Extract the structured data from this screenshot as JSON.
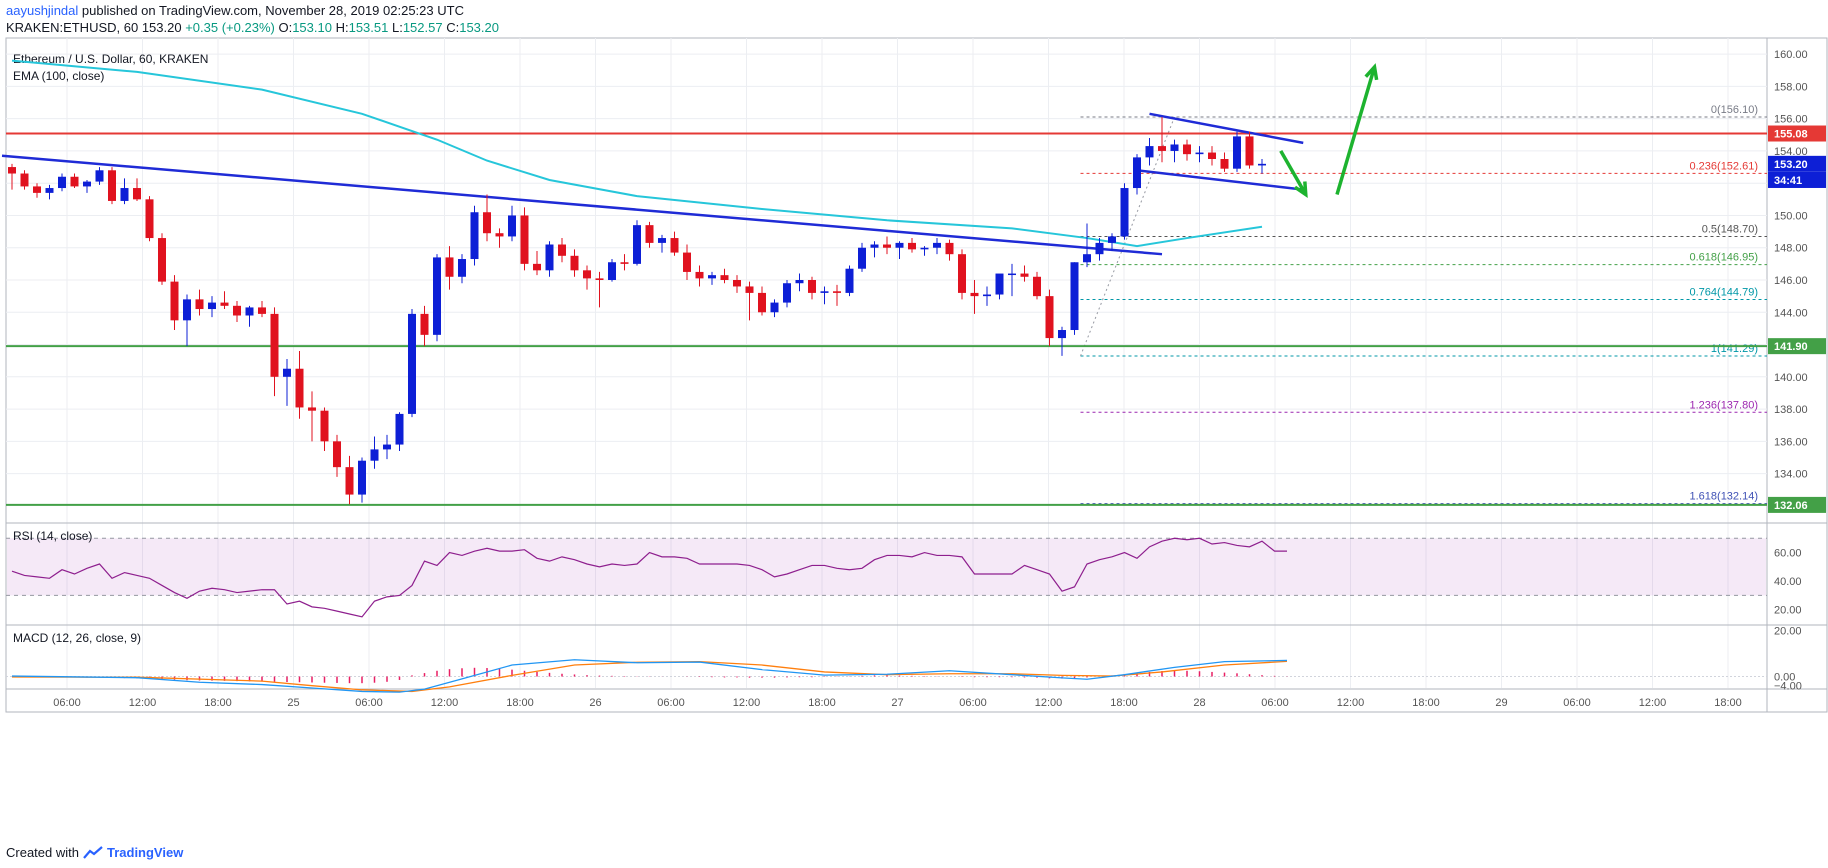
{
  "header": {
    "author": "aayushjindal",
    "published_text": "published on TradingView.com, November 28, 2019 02:25:23 UTC",
    "symbol": "KRAKEN:ETHUSD, 60",
    "price": "153.20",
    "change": "+0.35 (+0.23%)",
    "open_label": "O:",
    "open": "153.10",
    "high_label": "H:",
    "high": "153.51",
    "low_label": "L:",
    "low": "152.57",
    "close_label": "C:",
    "close": "153.20"
  },
  "footer": {
    "created_with": "Created with",
    "brand": "TradingView"
  },
  "colors": {
    "up": "#0d1fd6",
    "down": "#e0121f",
    "ema": "#26c6da",
    "trend": "#1f2bd6",
    "resistance": "#e53935",
    "support": "#43a047",
    "arrow": "#1db32f",
    "rsi": "#8e1f8e",
    "macd": "#2196f3",
    "signal": "#ff7f0e",
    "hist": "#e91e63"
  },
  "chart_data": [
    {
      "type": "candlestick",
      "title": "Ethereum / U.S. Dollar, 60, KRAKEN",
      "indicator_label": "EMA (100, close)",
      "ylim": [
        131,
        161
      ],
      "y_ticks": [
        "160.00",
        "158.00",
        "156.00",
        "154.00",
        "152.00",
        "150.00",
        "148.00",
        "146.00",
        "144.00",
        "142.00",
        "140.00",
        "138.00",
        "136.00",
        "134.00"
      ],
      "x_ticks": [
        "06:00",
        "12:00",
        "18:00",
        "25",
        "06:00",
        "12:00",
        "18:00",
        "26",
        "06:00",
        "12:00",
        "18:00",
        "27",
        "06:00",
        "12:00",
        "18:00",
        "28",
        "06:00",
        "12:00",
        "18:00",
        "29",
        "06:00",
        "12:00",
        "18:00"
      ],
      "price_tags": [
        {
          "value": 155.08,
          "label": "155.08",
          "color": "#e53935"
        },
        {
          "value": 153.2,
          "label": "153.20",
          "color": "#0d1fd6"
        },
        {
          "value": 152.2,
          "label": "34:41",
          "color": "#0d1fd6"
        },
        {
          "value": 141.9,
          "label": "141.90",
          "color": "#43a047"
        },
        {
          "value": 132.06,
          "label": "132.06",
          "color": "#43a047"
        }
      ],
      "horizontal_lines": [
        {
          "name": "resistance",
          "value": 155.08
        },
        {
          "name": "support-upper",
          "value": 141.9
        },
        {
          "name": "support-lower",
          "value": 132.06
        }
      ],
      "fibonacci": [
        {
          "level": "0",
          "label": "0(156.10)",
          "value": 156.1,
          "color": "#787b86"
        },
        {
          "level": "0.236",
          "label": "0.236(152.61)",
          "value": 152.61,
          "color": "#e53935"
        },
        {
          "level": "0.5",
          "label": "0.5(148.70)",
          "value": 148.7,
          "color": "#555555"
        },
        {
          "level": "0.618",
          "label": "0.618(146.95)",
          "value": 146.95,
          "color": "#43a047"
        },
        {
          "level": "0.764",
          "label": "0.764(144.79)",
          "value": 144.79,
          "color": "#0097a7"
        },
        {
          "level": "1",
          "label": "1(141.29)",
          "value": 141.29,
          "color": "#0097a7"
        },
        {
          "level": "1.236",
          "label": "1.236(137.80)",
          "value": 137.8,
          "color": "#9c27b0"
        },
        {
          "level": "1.618",
          "label": "1.618(132.14)",
          "value": 132.14,
          "color": "#3f51b5"
        }
      ],
      "candles": [
        [
          153.0,
          153.2,
          151.6,
          152.6
        ],
        [
          152.6,
          152.8,
          151.6,
          151.8
        ],
        [
          151.8,
          152.0,
          151.1,
          151.4
        ],
        [
          151.4,
          151.9,
          151.0,
          151.7
        ],
        [
          151.7,
          152.6,
          151.5,
          152.4
        ],
        [
          152.4,
          152.6,
          151.7,
          151.8
        ],
        [
          151.8,
          152.2,
          151.4,
          152.1
        ],
        [
          152.1,
          153.0,
          151.9,
          152.8
        ],
        [
          152.8,
          153.0,
          150.7,
          150.9
        ],
        [
          150.9,
          152.3,
          150.7,
          151.7
        ],
        [
          151.7,
          152.3,
          150.9,
          151.0
        ],
        [
          151.0,
          151.2,
          148.4,
          148.6
        ],
        [
          148.6,
          148.9,
          145.7,
          145.9
        ],
        [
          145.9,
          146.3,
          142.9,
          143.5
        ],
        [
          143.5,
          145.1,
          141.9,
          144.8
        ],
        [
          144.8,
          145.4,
          143.8,
          144.2
        ],
        [
          144.2,
          145.0,
          143.7,
          144.6
        ],
        [
          144.6,
          145.3,
          144.2,
          144.4
        ],
        [
          144.4,
          144.7,
          143.4,
          143.8
        ],
        [
          143.8,
          144.4,
          143.1,
          144.3
        ],
        [
          144.3,
          144.7,
          143.7,
          143.9
        ],
        [
          143.9,
          144.3,
          138.8,
          140.0
        ],
        [
          140.0,
          141.1,
          138.2,
          140.5
        ],
        [
          140.5,
          141.6,
          137.4,
          138.1
        ],
        [
          138.1,
          139.1,
          136.0,
          137.9
        ],
        [
          137.9,
          138.1,
          135.4,
          136.0
        ],
        [
          136.0,
          136.4,
          133.8,
          134.4
        ],
        [
          134.4,
          135.1,
          132.1,
          132.7
        ],
        [
          132.7,
          135.0,
          132.2,
          134.8
        ],
        [
          134.8,
          136.3,
          134.3,
          135.5
        ],
        [
          135.5,
          136.4,
          134.9,
          135.8
        ],
        [
          135.8,
          137.8,
          135.4,
          137.7
        ],
        [
          137.7,
          144.2,
          137.5,
          143.9
        ],
        [
          143.9,
          144.4,
          141.9,
          142.6
        ],
        [
          142.6,
          147.6,
          142.2,
          147.4
        ],
        [
          147.4,
          148.1,
          145.4,
          146.2
        ],
        [
          146.2,
          147.6,
          145.8,
          147.3
        ],
        [
          147.3,
          150.6,
          146.9,
          150.2
        ],
        [
          150.2,
          151.3,
          148.4,
          148.9
        ],
        [
          148.9,
          149.2,
          148.0,
          148.7
        ],
        [
          148.7,
          150.6,
          148.4,
          150.0
        ],
        [
          150.0,
          150.5,
          146.6,
          147.0
        ],
        [
          147.0,
          147.8,
          146.3,
          146.6
        ],
        [
          146.6,
          148.4,
          146.2,
          148.2
        ],
        [
          148.2,
          148.6,
          147.1,
          147.5
        ],
        [
          147.5,
          147.9,
          146.2,
          146.6
        ],
        [
          146.6,
          146.9,
          145.4,
          146.1
        ],
        [
          146.1,
          146.5,
          144.3,
          146.0
        ],
        [
          146.0,
          147.3,
          145.9,
          147.1
        ],
        [
          147.1,
          147.6,
          146.6,
          147.0
        ],
        [
          147.0,
          149.7,
          146.9,
          149.4
        ],
        [
          149.4,
          149.6,
          148.0,
          148.3
        ],
        [
          148.3,
          148.8,
          147.7,
          148.6
        ],
        [
          148.6,
          149.0,
          147.5,
          147.7
        ],
        [
          147.7,
          148.2,
          146.0,
          146.5
        ],
        [
          146.5,
          146.9,
          145.6,
          146.1
        ],
        [
          146.1,
          146.5,
          145.7,
          146.3
        ],
        [
          146.3,
          146.7,
          145.8,
          146.0
        ],
        [
          146.0,
          146.3,
          145.2,
          145.6
        ],
        [
          145.6,
          145.9,
          143.5,
          145.2
        ],
        [
          145.2,
          145.6,
          143.8,
          144.0
        ],
        [
          144.0,
          144.8,
          143.7,
          144.6
        ],
        [
          144.6,
          146.0,
          144.3,
          145.8
        ],
        [
          145.8,
          146.4,
          145.3,
          146.0
        ],
        [
          146.0,
          146.2,
          144.8,
          145.2
        ],
        [
          145.2,
          145.6,
          144.5,
          145.3
        ],
        [
          145.3,
          145.7,
          144.4,
          145.2
        ],
        [
          145.2,
          146.9,
          145.0,
          146.7
        ],
        [
          146.7,
          148.3,
          146.5,
          148.0
        ],
        [
          148.0,
          148.4,
          147.4,
          148.2
        ],
        [
          148.2,
          148.7,
          147.6,
          148.0
        ],
        [
          148.0,
          148.4,
          147.3,
          148.3
        ],
        [
          148.3,
          148.6,
          147.7,
          147.9
        ],
        [
          147.9,
          148.1,
          147.5,
          148.0
        ],
        [
          148.0,
          148.6,
          147.6,
          148.3
        ],
        [
          148.3,
          148.5,
          147.2,
          147.6
        ],
        [
          147.6,
          147.9,
          144.8,
          145.2
        ],
        [
          145.2,
          146.0,
          143.9,
          145.0
        ],
        [
          145.0,
          145.6,
          144.4,
          145.1
        ],
        [
          145.1,
          146.2,
          144.8,
          146.4
        ],
        [
          146.4,
          147.0,
          145.0,
          146.4
        ],
        [
          146.4,
          146.9,
          145.9,
          146.2
        ],
        [
          146.2,
          146.5,
          144.8,
          145.0
        ],
        [
          145.0,
          145.4,
          141.9,
          142.4
        ],
        [
          142.4,
          143.1,
          141.3,
          142.9
        ],
        [
          142.9,
          147.1,
          142.6,
          147.1
        ],
        [
          147.1,
          149.5,
          146.8,
          147.6
        ],
        [
          147.6,
          148.6,
          147.2,
          148.3
        ],
        [
          148.3,
          148.9,
          147.8,
          148.7
        ],
        [
          148.7,
          152.0,
          148.5,
          151.7
        ],
        [
          151.7,
          153.8,
          151.3,
          153.6
        ],
        [
          153.6,
          154.8,
          153.1,
          154.3
        ],
        [
          154.3,
          156.1,
          153.3,
          154.0
        ],
        [
          154.0,
          154.7,
          153.3,
          154.4
        ],
        [
          154.4,
          154.7,
          153.4,
          153.8
        ],
        [
          153.8,
          154.3,
          153.3,
          153.9
        ],
        [
          153.9,
          154.3,
          153.1,
          153.5
        ],
        [
          153.5,
          153.9,
          152.7,
          152.9
        ],
        [
          152.9,
          155.2,
          152.7,
          154.9
        ],
        [
          154.9,
          155.2,
          152.9,
          153.1
        ],
        [
          153.1,
          153.5,
          152.6,
          153.2
        ]
      ],
      "ema_points": [
        [
          0,
          159.6
        ],
        [
          10,
          158.9
        ],
        [
          20,
          157.8
        ],
        [
          28,
          156.3
        ],
        [
          34,
          154.7
        ],
        [
          38,
          153.4
        ],
        [
          43,
          152.2
        ],
        [
          50,
          151.2
        ],
        [
          60,
          150.4
        ],
        [
          70,
          149.7
        ],
        [
          80,
          149.2
        ],
        [
          86,
          148.6
        ],
        [
          90,
          148.1
        ],
        [
          94,
          148.6
        ],
        [
          100,
          149.3
        ]
      ],
      "trendlines": [
        {
          "name": "main-trendline",
          "from": [
            -0.8,
            153.7
          ],
          "to": [
            92.0,
            147.6
          ]
        },
        {
          "name": "channel-upper",
          "from": [
            91.0,
            156.3
          ],
          "to": [
            103.3,
            154.5
          ]
        },
        {
          "name": "channel-lower",
          "from": [
            90.0,
            152.8
          ],
          "to": [
            103.3,
            151.6
          ]
        }
      ],
      "arrows": [
        {
          "name": "pullback-arrow",
          "from": [
            101.5,
            154.0
          ],
          "to": [
            103.5,
            151.3
          ]
        },
        {
          "name": "breakout-arrow",
          "from": [
            106.0,
            151.3
          ],
          "to": [
            109.0,
            159.2
          ]
        }
      ]
    },
    {
      "type": "line",
      "title": "RSI (14, close)",
      "ylim": [
        10,
        80
      ],
      "y_ticks": [
        "60.00",
        "40.00",
        "20.00"
      ],
      "band": [
        30,
        70
      ],
      "values": [
        47,
        44,
        43,
        42,
        48,
        45,
        49,
        52,
        42,
        46,
        44,
        42,
        37,
        32,
        28,
        33,
        35,
        34,
        32,
        33,
        34,
        34,
        24,
        26,
        22,
        21,
        19,
        17,
        15,
        26,
        29,
        30,
        37,
        54,
        51,
        60,
        58,
        61,
        63,
        61,
        61,
        62,
        56,
        54,
        57,
        55,
        52,
        50,
        52,
        51,
        52,
        60,
        57,
        57,
        56,
        52,
        52,
        52,
        52,
        51,
        48,
        43,
        45,
        48,
        51,
        51,
        49,
        48,
        49,
        55,
        58,
        58,
        57,
        60,
        58,
        58,
        57,
        45,
        45,
        45,
        45,
        51,
        48,
        45,
        33,
        36,
        52,
        55,
        57,
        60,
        56,
        64,
        68,
        70,
        69,
        70,
        66,
        67,
        65,
        64,
        68,
        61,
        61
      ]
    },
    {
      "type": "line",
      "title": "MACD (12, 26, close, 9)",
      "ylim": [
        -5,
        22
      ],
      "y_ticks": [
        "20.00",
        "0.00",
        "−4.00"
      ],
      "macd": [
        [
          0,
          0.2
        ],
        [
          10,
          -0.5
        ],
        [
          15,
          -2.5
        ],
        [
          20,
          -3.5
        ],
        [
          24,
          -5.0
        ],
        [
          28,
          -6.5
        ],
        [
          31,
          -6.8
        ],
        [
          33,
          -5.5
        ],
        [
          36,
          -1.0
        ],
        [
          40,
          5.0
        ],
        [
          45,
          7.3
        ],
        [
          50,
          6.0
        ],
        [
          55,
          6.3
        ],
        [
          60,
          3.0
        ],
        [
          65,
          0.6
        ],
        [
          70,
          1.0
        ],
        [
          75,
          2.5
        ],
        [
          80,
          0.8
        ],
        [
          84,
          -0.6
        ],
        [
          86,
          -1.2
        ],
        [
          89,
          0.8
        ],
        [
          93,
          4.0
        ],
        [
          97,
          6.5
        ],
        [
          102,
          7.0
        ]
      ],
      "signal": [
        [
          0,
          -0.2
        ],
        [
          10,
          -0.3
        ],
        [
          20,
          -2.0
        ],
        [
          24,
          -4.0
        ],
        [
          28,
          -5.8
        ],
        [
          32,
          -6.5
        ],
        [
          35,
          -4.5
        ],
        [
          40,
          0.5
        ],
        [
          45,
          5.0
        ],
        [
          50,
          6.2
        ],
        [
          55,
          6.5
        ],
        [
          60,
          5.0
        ],
        [
          65,
          2.0
        ],
        [
          70,
          0.8
        ],
        [
          75,
          1.2
        ],
        [
          80,
          1.2
        ],
        [
          84,
          0.5
        ],
        [
          88,
          0.2
        ],
        [
          92,
          2.0
        ],
        [
          97,
          5.0
        ],
        [
          102,
          6.6
        ]
      ],
      "histogram": [
        0,
        -0.2,
        -0.2,
        -0.3,
        -0.3,
        -0.4,
        -0.5,
        -0.5,
        -0.6,
        -0.7,
        -0.8,
        -1.0,
        -1.2,
        -1.4,
        -1.6,
        -1.7,
        -1.8,
        -1.9,
        -2.0,
        -2.1,
        -2.2,
        -2.3,
        -2.4,
        -2.5,
        -2.6,
        -2.7,
        -2.8,
        -2.9,
        -2.9,
        -2.7,
        -2.3,
        -1.5,
        0.5,
        1.5,
        2.5,
        3.2,
        3.6,
        3.8,
        3.7,
        3.5,
        3.0,
        2.5,
        2.0,
        1.6,
        1.2,
        0.9,
        0.6,
        0.4,
        0.3,
        0.2,
        0.1,
        0.1,
        0.05,
        0.0,
        -0.1,
        -0.2,
        -0.3,
        -0.4,
        -0.4,
        -0.5,
        -0.5,
        -0.5,
        -0.4,
        -0.3,
        -0.3,
        -0.2,
        -0.1,
        0.1,
        0.3,
        0.5,
        0.5,
        0.4,
        0.3,
        0.2,
        0.1,
        0.0,
        -0.2,
        -0.3,
        -0.3,
        -0.3,
        -0.3,
        -0.4,
        -0.5,
        -0.8,
        -0.9,
        -0.7,
        -0.4,
        0.0,
        0.5,
        1.0,
        1.5,
        2.0,
        2.4,
        2.6,
        2.5,
        2.3,
        2.0,
        1.7,
        1.4,
        1.0,
        0.6,
        0.3,
        0.1
      ]
    }
  ]
}
